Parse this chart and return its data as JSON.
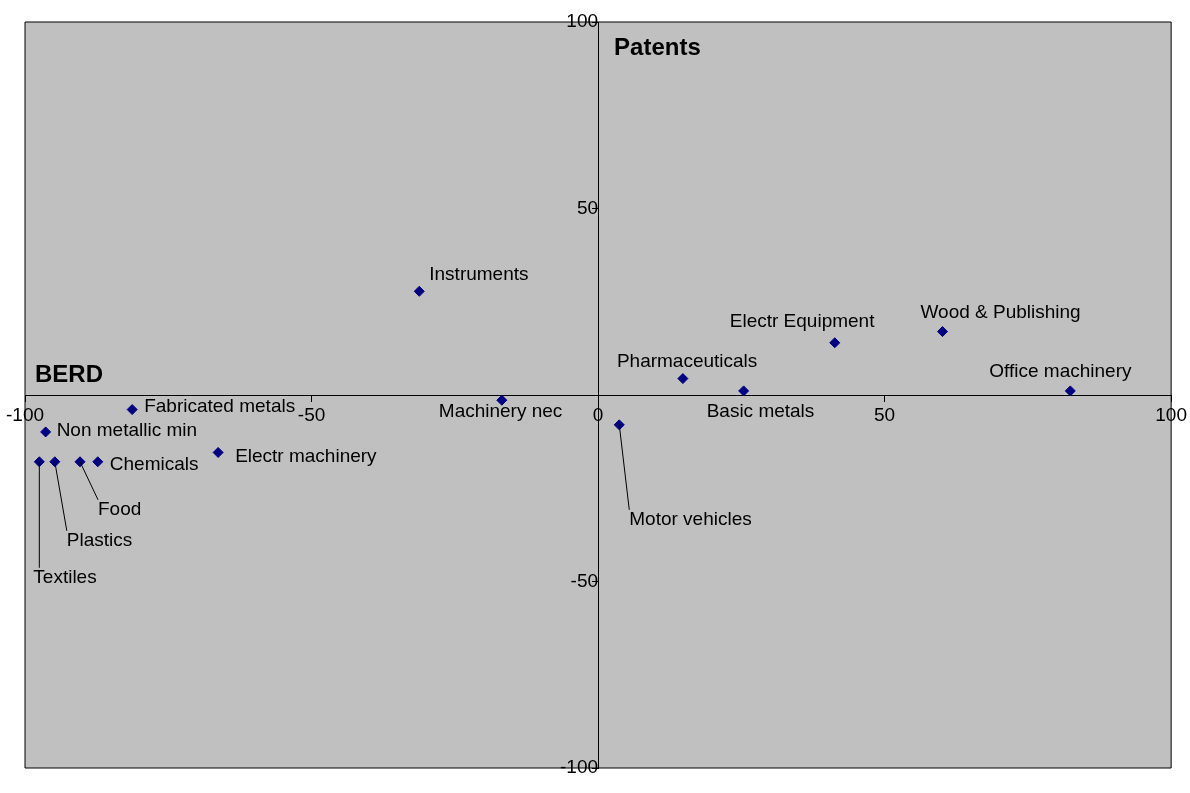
{
  "chart_data": {
    "type": "scatter",
    "xlabel": "BERD",
    "ylabel": "Patents",
    "xlim": [
      -100,
      100
    ],
    "xticks": [
      -100,
      -50,
      0,
      50,
      100
    ],
    "ylim": [
      -100,
      100
    ],
    "yticks": [
      -100,
      -50,
      50,
      100
    ],
    "grid": false,
    "legend": false,
    "marker": "diamond",
    "series": [
      {
        "color": "#000080",
        "x": [
          -31.2,
          -16.8,
          3.7,
          14.8,
          25.4,
          41.3,
          60.1,
          82.4,
          -81.3,
          -96.4,
          -66.3,
          -87.3,
          -90.4,
          -94.8,
          -97.5
        ],
        "values": [
          27.8,
          -1.4,
          -8,
          4.4,
          1.1,
          14,
          17,
          1.1,
          -3.9,
          -9.9,
          -15.4,
          -17.9,
          -17.9,
          -17.9,
          -17.9
        ]
      }
    ],
    "annotations": [
      {
        "text": "Instruments",
        "x": -31.2,
        "y": 27.8
      },
      {
        "text": "Machinery nec",
        "x": -16.8,
        "y": -1.4
      },
      {
        "text": "Motor vehicles",
        "x": 3.7,
        "y": -8
      },
      {
        "text": "Pharmaceuticals",
        "x": 14.8,
        "y": 4.4
      },
      {
        "text": "Basic metals",
        "x": 25.4,
        "y": 1.1
      },
      {
        "text": "Electr Equipment",
        "x": 41.3,
        "y": 14
      },
      {
        "text": "Wood & Publishing",
        "x": 60.1,
        "y": 17
      },
      {
        "text": "Office machinery",
        "x": 82.4,
        "y": 1.1
      },
      {
        "text": "Fabricated metals",
        "x": -81.3,
        "y": -3.9
      },
      {
        "text": "Non metallic min",
        "x": -96.4,
        "y": -9.9
      },
      {
        "text": "Electr machinery",
        "x": -66.3,
        "y": -15.4
      },
      {
        "text": "Chemicals",
        "x": -87.3,
        "y": -17.9
      },
      {
        "text": "Food",
        "x": -90.4,
        "y": -17.9
      },
      {
        "text": "Plastics",
        "x": -94.8,
        "y": -17.9
      },
      {
        "text": "Textiles",
        "x": -97.5,
        "y": -17.9
      }
    ]
  }
}
